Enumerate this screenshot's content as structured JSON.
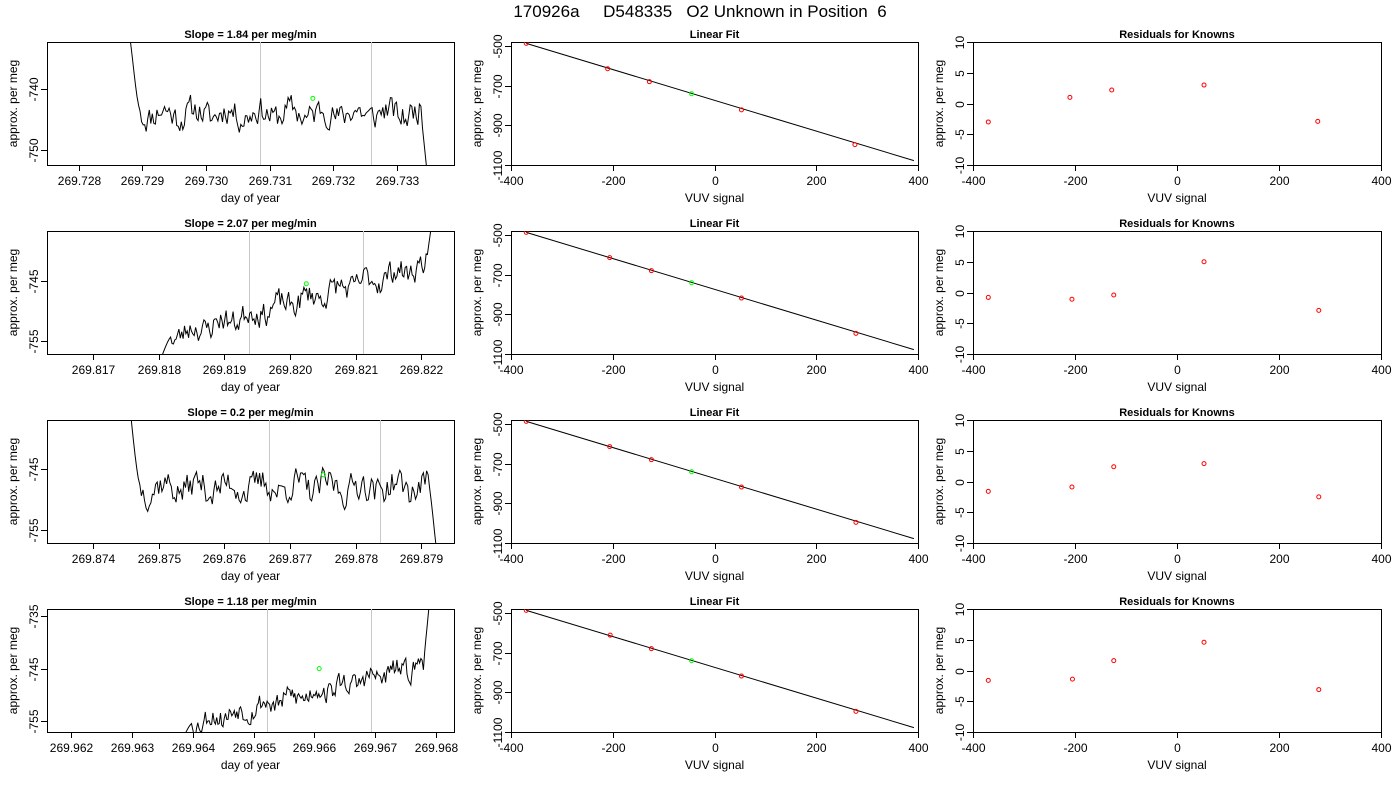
{
  "page_title": "170926a     D548335   O2 Unknown in Position  6",
  "colors": {
    "trace": "#000000",
    "vertical_marker": "#c8c8c8",
    "known_points": "#ff0000",
    "unknown_point": "#00ff00"
  },
  "chart_data": [
    {
      "type": "line",
      "panel": "row1-trace",
      "title": "Slope =  1.84  per meg/min",
      "xlabel": "day of year",
      "ylabel": "approx. per meg",
      "xlim": [
        269.7275,
        269.7339
      ],
      "ylim": [
        -752.5,
        -732.2
      ],
      "xticks": [
        269.728,
        269.729,
        269.73,
        269.731,
        269.732,
        269.733
      ],
      "xtick_labels": [
        "269.728",
        "269.729",
        "269.730",
        "269.731",
        "269.732",
        "269.733"
      ],
      "yticks": [
        -740,
        -750
      ],
      "ytick_labels": [
        "-740",
        "-750"
      ],
      "vlines": [
        269.73085,
        269.7326
      ],
      "series": [
        {
          "trace_window": [
            269.7287,
            269.7335
          ],
          "start": -726,
          "drop_to": -744.5,
          "mean": -744,
          "end": -756,
          "amplitude": 2.2,
          "seed": 11
        }
      ],
      "unknown_point": {
        "x": 269.73168,
        "y": -741.5
      },
      "grid": false,
      "legend": "none"
    },
    {
      "type": "scatter",
      "panel": "row1-fit",
      "title": "Linear Fit",
      "xlabel": "VUV signal",
      "ylabel": "approx. per meg",
      "xlim": [
        -400,
        400
      ],
      "ylim": [
        -1100,
        -480
      ],
      "xticks": [
        -400,
        -200,
        0,
        200,
        400
      ],
      "xtick_labels": [
        "-400",
        "-200",
        "0",
        "200",
        "400"
      ],
      "yticks": [
        -500,
        -700,
        -900,
        -1100
      ],
      "ytick_labels": [
        "-500",
        "-700",
        "-900",
        "-1100"
      ],
      "fit_line": {
        "x": [
          -370,
          392
        ],
        "y": [
          -487,
          -1078
        ]
      },
      "series": [
        {
          "x": [
            -370,
            -210,
            -128,
            53,
            276
          ],
          "y": [
            -487,
            -615,
            -680,
            -822,
            -997
          ]
        }
      ],
      "unknown_point": {
        "x": -45,
        "y": -741
      },
      "grid": false,
      "legend": "none"
    },
    {
      "type": "scatter",
      "panel": "row1-resid",
      "title": "Residuals for Knowns",
      "xlabel": "VUV signal",
      "ylabel": "approx. per meg",
      "xlim": [
        -400,
        400
      ],
      "ylim": [
        -10,
        10
      ],
      "xticks": [
        -400,
        -200,
        0,
        200,
        400
      ],
      "xtick_labels": [
        "-400",
        "-200",
        "0",
        "200",
        "400"
      ],
      "yticks": [
        -10,
        -5,
        0,
        5,
        10
      ],
      "ytick_labels": [
        "-10",
        "-5",
        "0",
        "5",
        "10"
      ],
      "series": [
        {
          "x": [
            -370,
            -210,
            -128,
            53,
            276
          ],
          "y": [
            -3.0,
            1.0,
            2.2,
            3.0,
            -2.9
          ]
        }
      ],
      "grid": false,
      "legend": "none"
    },
    {
      "type": "line",
      "panel": "row2-trace",
      "title": "Slope =  2.07  per meg/min",
      "xlabel": "day of year",
      "ylabel": "approx. per meg",
      "xlim": [
        269.8163,
        269.8225
      ],
      "ylim": [
        -757.2,
        -736.7
      ],
      "xticks": [
        269.817,
        269.818,
        269.819,
        269.82,
        269.821,
        269.822
      ],
      "xtick_labels": [
        "269.817",
        "269.818",
        "269.819",
        "269.820",
        "269.821",
        "269.822"
      ],
      "yticks": [
        -745,
        -755
      ],
      "ytick_labels": [
        "-745",
        "-755"
      ],
      "vlines": [
        269.81938,
        269.82112
      ],
      "series": [
        {
          "trace_window": [
            269.81795,
            269.82218
          ],
          "start": -759,
          "drop_to": -759,
          "mean_start": -755,
          "mean_end": -742,
          "end": -734,
          "amplitude": 2.0,
          "seed": 23
        }
      ],
      "unknown_point": {
        "x": 269.82025,
        "y": -745.5
      },
      "grid": false,
      "legend": "none"
    },
    {
      "type": "scatter",
      "panel": "row2-fit",
      "title": "Linear Fit",
      "xlabel": "VUV signal",
      "ylabel": "approx. per meg",
      "xlim": [
        -400,
        400
      ],
      "ylim": [
        -1100,
        -480
      ],
      "xticks": [
        -400,
        -200,
        0,
        200,
        400
      ],
      "xtick_labels": [
        "-400",
        "-200",
        "0",
        "200",
        "400"
      ],
      "yticks": [
        -500,
        -700,
        -900,
        -1100
      ],
      "ytick_labels": [
        "-500",
        "-700",
        "-900",
        "-1100"
      ],
      "fit_line": {
        "x": [
          -370,
          392
        ],
        "y": [
          -487,
          -1078
        ]
      },
      "series": [
        {
          "x": [
            -370,
            -206,
            -124,
            53,
            278
          ],
          "y": [
            -487,
            -614,
            -680,
            -818,
            -996
          ]
        }
      ],
      "unknown_point": {
        "x": -45,
        "y": -741
      },
      "grid": false,
      "legend": "none"
    },
    {
      "type": "scatter",
      "panel": "row2-resid",
      "title": "Residuals for Knowns",
      "xlabel": "VUV signal",
      "ylabel": "approx. per meg",
      "xlim": [
        -400,
        400
      ],
      "ylim": [
        -10,
        10
      ],
      "xticks": [
        -400,
        -200,
        0,
        200,
        400
      ],
      "xtick_labels": [
        "-400",
        "-200",
        "0",
        "200",
        "400"
      ],
      "yticks": [
        -10,
        -5,
        0,
        5,
        10
      ],
      "ytick_labels": [
        "-10",
        "-5",
        "0",
        "5",
        "10"
      ],
      "series": [
        {
          "x": [
            -370,
            -206,
            -124,
            53,
            278
          ],
          "y": [
            -0.8,
            -1.1,
            -0.4,
            5.0,
            -2.9
          ]
        }
      ],
      "grid": false,
      "legend": "none"
    },
    {
      "type": "line",
      "panel": "row3-trace",
      "title": "Slope =  0.2  per meg/min",
      "xlabel": "day of year",
      "ylabel": "approx. per meg",
      "xlim": [
        269.8733,
        269.8795
      ],
      "ylim": [
        -757.2,
        -737.0
      ],
      "xticks": [
        269.874,
        269.875,
        269.876,
        269.877,
        269.878,
        269.879
      ],
      "xtick_labels": [
        "269.874",
        "269.875",
        "269.876",
        "269.877",
        "269.878",
        "269.879"
      ],
      "yticks": [
        -745,
        -755
      ],
      "ytick_labels": [
        "-745",
        "-755"
      ],
      "vlines": [
        269.87668,
        269.87838
      ],
      "series": [
        {
          "trace_window": [
            269.87445,
            269.87925
          ],
          "start": -728,
          "drop_to": -756,
          "mean": -748,
          "end": -760,
          "amplitude": 2.4,
          "seed": 37
        }
      ],
      "unknown_point": {
        "x": 269.87751,
        "y": -746
      },
      "grid": false,
      "legend": "none"
    },
    {
      "type": "scatter",
      "panel": "row3-fit",
      "title": "Linear Fit",
      "xlabel": "VUV signal",
      "ylabel": "approx. per meg",
      "xlim": [
        -400,
        400
      ],
      "ylim": [
        -1100,
        -480
      ],
      "xticks": [
        -400,
        -200,
        0,
        200,
        400
      ],
      "xtick_labels": [
        "-400",
        "-200",
        "0",
        "200",
        "400"
      ],
      "yticks": [
        -500,
        -700,
        -900,
        -1100
      ],
      "ytick_labels": [
        "-500",
        "-700",
        "-900",
        "-1100"
      ],
      "fit_line": {
        "x": [
          -370,
          392
        ],
        "y": [
          -487,
          -1078
        ]
      },
      "series": [
        {
          "x": [
            -370,
            -206,
            -124,
            53,
            278
          ],
          "y": [
            -487,
            -614,
            -680,
            -818,
            -996
          ]
        }
      ],
      "unknown_point": {
        "x": -45,
        "y": -741
      },
      "grid": false,
      "legend": "none"
    },
    {
      "type": "scatter",
      "panel": "row3-resid",
      "title": "Residuals for Knowns",
      "xlabel": "VUV signal",
      "ylabel": "approx. per meg",
      "xlim": [
        -400,
        400
      ],
      "ylim": [
        -10,
        10
      ],
      "xticks": [
        -400,
        -200,
        0,
        200,
        400
      ],
      "xtick_labels": [
        "-400",
        "-200",
        "0",
        "200",
        "400"
      ],
      "yticks": [
        -10,
        -5,
        0,
        5,
        10
      ],
      "ytick_labels": [
        "-10",
        "-5",
        "0",
        "5",
        "10"
      ],
      "series": [
        {
          "x": [
            -370,
            -206,
            -124,
            53,
            278
          ],
          "y": [
            -1.6,
            -0.9,
            2.4,
            2.9,
            -2.5
          ]
        }
      ],
      "grid": false,
      "legend": "none"
    },
    {
      "type": "line",
      "panel": "row4-trace",
      "title": "Slope =  1.18  per meg/min",
      "xlabel": "day of year",
      "ylabel": "approx. per meg",
      "xlim": [
        269.9616,
        269.9683
      ],
      "ylim": [
        -757.0,
        -733.7
      ],
      "xticks": [
        269.962,
        269.963,
        269.964,
        269.965,
        269.966,
        269.967,
        269.968
      ],
      "xtick_labels": [
        "269.962",
        "269.963",
        "269.964",
        "269.965",
        "269.966",
        "269.967",
        "269.968"
      ],
      "yticks": [
        -735,
        -745,
        -755
      ],
      "ytick_labels": [
        "-735",
        "-745",
        "-755"
      ],
      "vlines": [
        269.96522,
        269.96693
      ],
      "series": [
        {
          "trace_window": [
            269.96375,
            269.9679
          ],
          "start": -759,
          "drop_to": -759,
          "mean_start": -756,
          "mean_end": -744,
          "end": -732,
          "amplitude": 2.0,
          "seed": 53
        }
      ],
      "unknown_point": {
        "x": 269.96608,
        "y": -745
      },
      "grid": false,
      "legend": "none"
    },
    {
      "type": "scatter",
      "panel": "row4-fit",
      "title": "Linear Fit",
      "xlabel": "VUV signal",
      "ylabel": "approx. per meg",
      "xlim": [
        -400,
        400
      ],
      "ylim": [
        -1100,
        -480
      ],
      "xticks": [
        -400,
        -200,
        0,
        200,
        400
      ],
      "xtick_labels": [
        "-400",
        "-200",
        "0",
        "200",
        "400"
      ],
      "yticks": [
        -500,
        -700,
        -900,
        -1100
      ],
      "ytick_labels": [
        "-500",
        "-700",
        "-900",
        "-1100"
      ],
      "fit_line": {
        "x": [
          -370,
          392
        ],
        "y": [
          -487,
          -1078
        ]
      },
      "series": [
        {
          "x": [
            -370,
            -205,
            -124,
            53,
            278
          ],
          "y": [
            -487,
            -612,
            -680,
            -818,
            -996
          ]
        }
      ],
      "unknown_point": {
        "x": -45,
        "y": -741
      },
      "grid": false,
      "legend": "none"
    },
    {
      "type": "scatter",
      "panel": "row4-resid",
      "title": "Residuals for Knowns",
      "xlabel": "VUV signal",
      "ylabel": "approx. per meg",
      "xlim": [
        -400,
        400
      ],
      "ylim": [
        -10,
        10
      ],
      "xticks": [
        -400,
        -200,
        0,
        200,
        400
      ],
      "xtick_labels": [
        "-400",
        "-200",
        "0",
        "200",
        "400"
      ],
      "yticks": [
        -10,
        -5,
        0,
        5,
        10
      ],
      "ytick_labels": [
        "-10",
        "-5",
        "0",
        "5",
        "10"
      ],
      "series": [
        {
          "x": [
            -370,
            -205,
            -124,
            53,
            278
          ],
          "y": [
            -1.6,
            -1.4,
            1.6,
            4.6,
            -3.1
          ]
        }
      ],
      "grid": false,
      "legend": "none"
    }
  ]
}
